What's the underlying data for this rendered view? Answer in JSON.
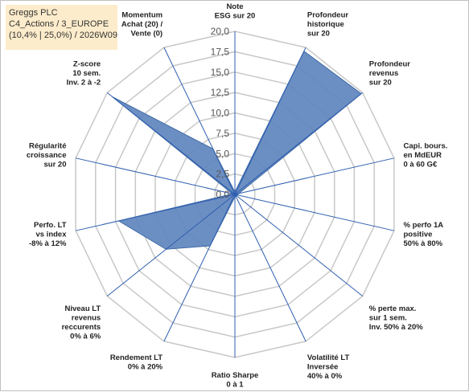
{
  "header": {
    "line1": "Greggs PLC",
    "line2": "C4_Actions / 3_EUROPE",
    "line3": "(10,4% | 25,0%) / 2026W09"
  },
  "colors": {
    "fill": "#5f86be",
    "stroke": "#3f6aa6",
    "axis": "#2f5fb0",
    "grid": "#c8c8c8",
    "header_bg": "#fdeccb"
  },
  "chart_data": {
    "type": "radar",
    "rmin": 0,
    "rmax": 20,
    "grid": true,
    "ticks": [
      "0,0",
      "2,5",
      "5,0",
      "7,5",
      "10,0",
      "12,5",
      "15,0",
      "17,5",
      "20,0"
    ],
    "axes": [
      {
        "label": [
          "Note",
          "ESG sur 20"
        ],
        "value": 0.3
      },
      {
        "label": [
          "Profondeur",
          "historique",
          "sur 20"
        ],
        "value": 19.5
      },
      {
        "label": [
          "Profondeur",
          "revenus",
          "sur 20"
        ],
        "value": 19.8
      },
      {
        "label": [
          "Capi. bours.",
          "en MdEUR",
          "0 à 60 G€"
        ],
        "value": 0.5
      },
      {
        "label": [
          "% perfo 1A",
          "positive",
          "50% à 80%"
        ],
        "value": 0.3
      },
      {
        "label": [
          "% perte max.",
          "sur 1 sem.",
          "Inv. 50% à 20%"
        ],
        "value": 0.3
      },
      {
        "label": [
          "Volatilité LT",
          "Inversée",
          "40% à 0%"
        ],
        "value": 0.3
      },
      {
        "label": [
          "Ratio Sharpe",
          "0 à 1"
        ],
        "value": 0.3
      },
      {
        "label": [
          "Rendement LT",
          "0% à 20%"
        ],
        "value": 7.0
      },
      {
        "label": [
          "Niveau LT",
          "revenus",
          "reccurents",
          "0% à 6%"
        ],
        "value": 10.8
      },
      {
        "label": [
          "Perfo. LT",
          "vs index",
          "-8% à 12%"
        ],
        "value": 14.6
      },
      {
        "label": [
          "Régularité",
          "croissance",
          "sur 20"
        ],
        "value": 0.3
      },
      {
        "label": [
          "Z-score",
          "10 sem.",
          "Inv. 2 à -2"
        ],
        "value": 19.2
      },
      {
        "label": [
          "Momentum",
          "Achat (20) /",
          "Vente (0)"
        ],
        "value": 6.2
      }
    ]
  }
}
